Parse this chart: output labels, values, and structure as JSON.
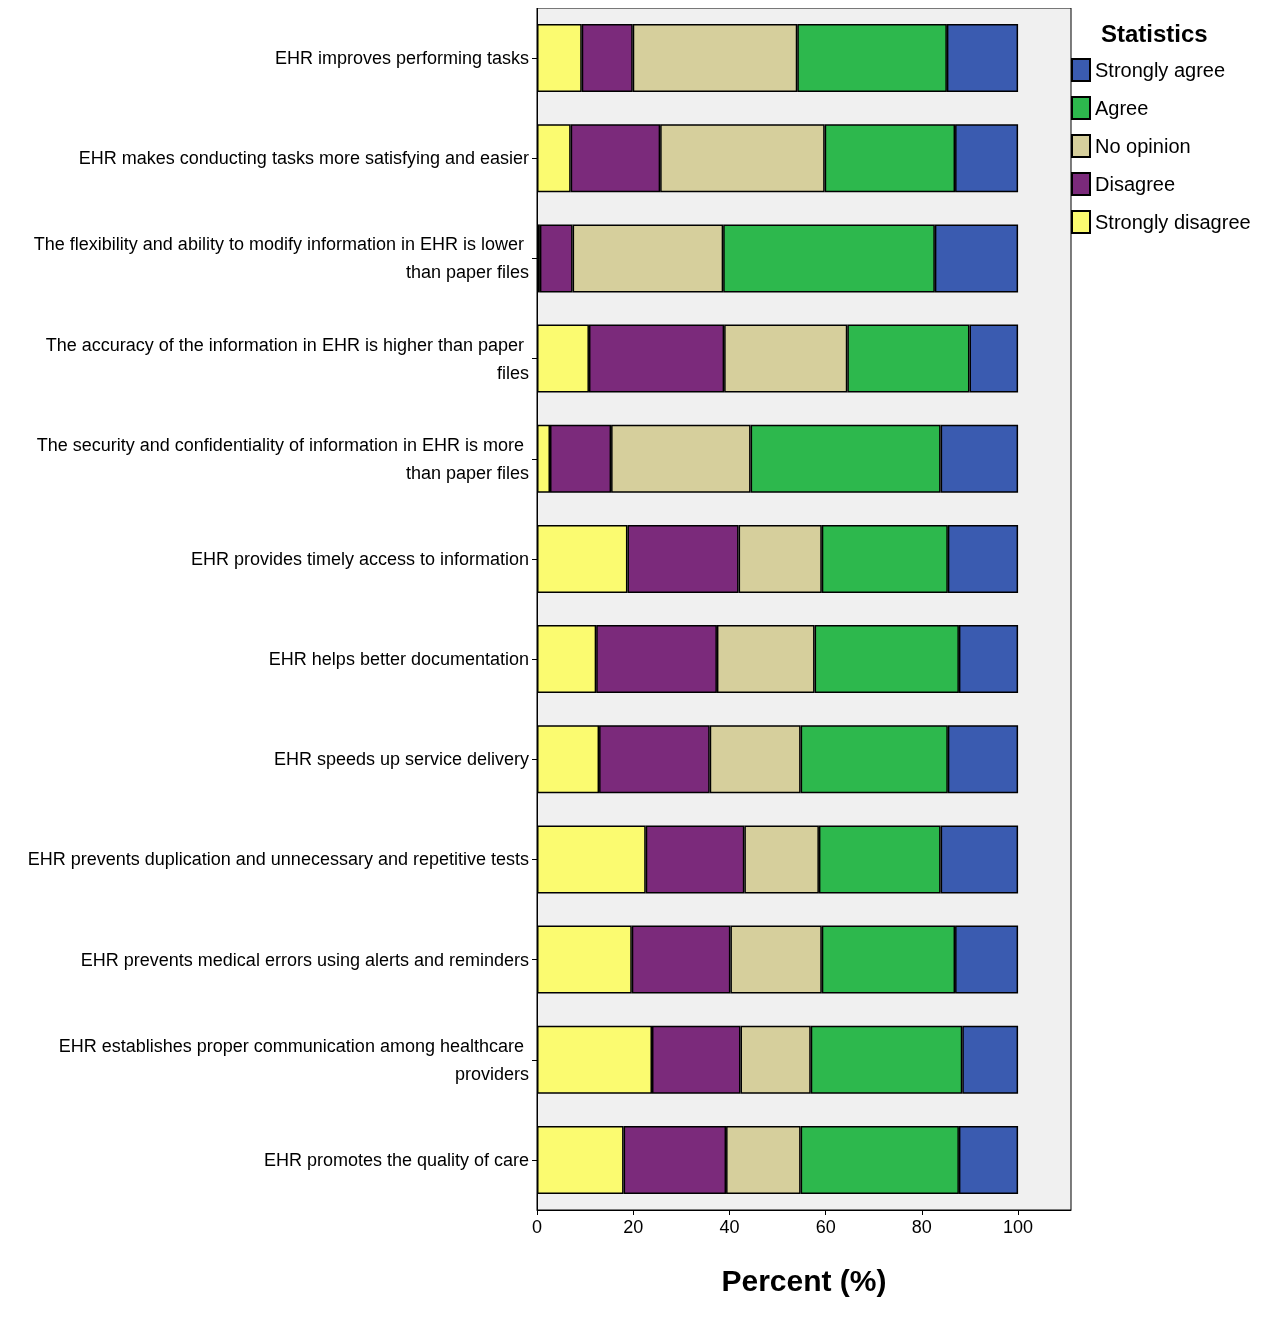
{
  "chart_data": {
    "type": "bar",
    "orientation": "horizontal",
    "stacked": true,
    "xlabel": "Percent (%)",
    "legend_title": "Statistics",
    "legend": "top right",
    "grid": false,
    "categories": [
      "EHR improves performing tasks",
      "EHR makes conducting tasks more satisfying and easier",
      "The flexibility and ability to modify information in EHR is lower than paper files",
      "The accuracy of the information in EHR is higher than paper files",
      "The security and confidentiality of information in EHR is more than paper files",
      "EHR provides timely access to information",
      "EHR helps better documentation",
      "EHR speeds up service delivery",
      "EHR prevents duplication and unnecessary and repetitive tests",
      "EHR prevents medical errors using alerts and reminders",
      "EHR establishes proper communication among healthcare providers",
      "EHR promotes the quality of care"
    ],
    "xlim": [
      0,
      111
    ],
    "xticks": [
      0,
      20,
      40,
      60,
      80,
      100
    ],
    "series": [
      {
        "name": "Strongly disagree",
        "color": "#fbfb70",
        "values": [
          9.3,
          7.0,
          0.6,
          10.8,
          2.7,
          18.8,
          12.3,
          12.9,
          22.6,
          19.7,
          23.9,
          18.0
        ]
      },
      {
        "name": "Disagree",
        "color": "#7b2a7b",
        "values": [
          10.6,
          18.6,
          6.8,
          28.1,
          12.7,
          23.1,
          25.1,
          23.0,
          20.5,
          20.5,
          18.4,
          21.3
        ]
      },
      {
        "name": "No opinion",
        "color": "#d6cf9c",
        "values": [
          34.2,
          34.2,
          31.3,
          25.6,
          29.0,
          17.3,
          20.3,
          18.9,
          15.5,
          19.0,
          14.6,
          15.5
        ]
      },
      {
        "name": "Agree",
        "color": "#2db84d",
        "values": [
          31.1,
          27.1,
          44.0,
          25.4,
          39.5,
          26.2,
          30.0,
          30.6,
          25.3,
          27.7,
          31.5,
          32.9
        ]
      },
      {
        "name": "Strongly agree",
        "color": "#3a5bb0",
        "values": [
          14.8,
          13.1,
          17.3,
          10.1,
          16.1,
          14.6,
          12.3,
          14.6,
          16.1,
          13.1,
          11.6,
          12.3
        ]
      }
    ]
  }
}
